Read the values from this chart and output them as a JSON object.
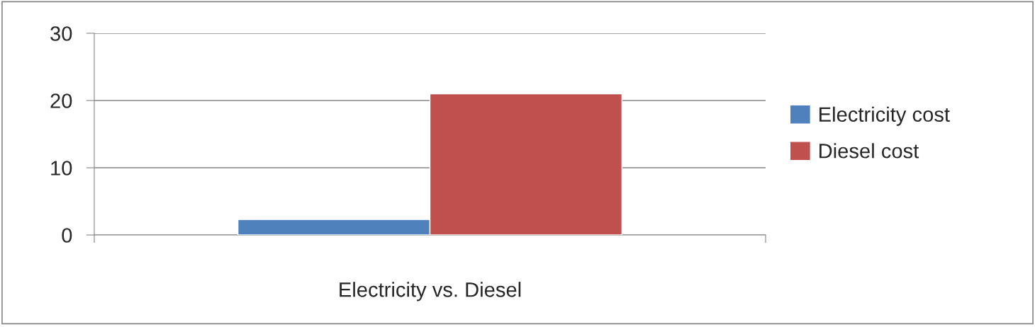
{
  "chart_data": {
    "type": "bar",
    "categories": [
      "Electricity vs. Diesel"
    ],
    "series": [
      {
        "name": "Electricity cost",
        "color": "#4f81bd",
        "values": [
          2.3
        ]
      },
      {
        "name": "Diesel cost",
        "color": "#c0504d",
        "values": [
          21
        ]
      }
    ],
    "ylim": [
      0,
      30
    ],
    "yticks": [
      0,
      10,
      20,
      30
    ],
    "grid": "y",
    "legend": "right"
  }
}
